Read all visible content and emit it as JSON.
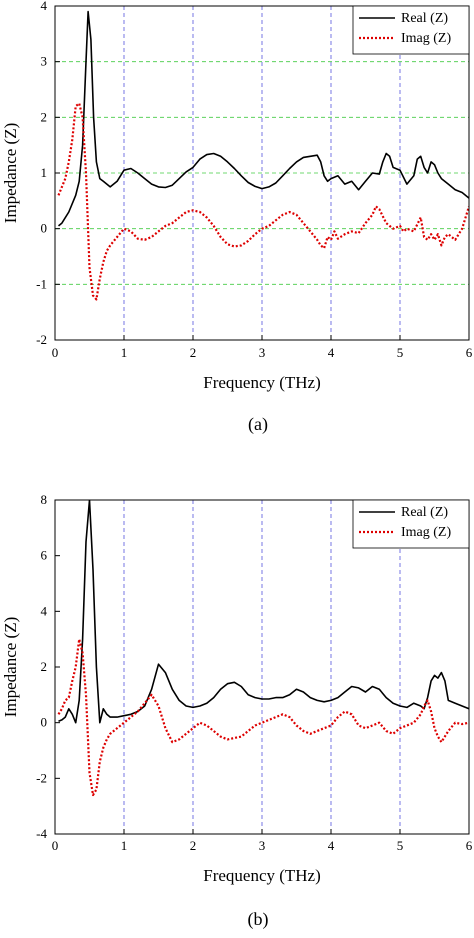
{
  "chart_data": [
    {
      "type": "line",
      "caption": "(a)",
      "xlabel": "Frequency (THz)",
      "ylabel": "Impedance (Z)",
      "xlim": [
        0,
        6
      ],
      "ylim": [
        -2,
        4
      ],
      "xticks": [
        0,
        1,
        2,
        3,
        4,
        5,
        6
      ],
      "yticks": [
        -2,
        -1,
        0,
        1,
        2,
        3,
        4
      ],
      "grid": {
        "x": "blue dashed vertical",
        "y": "green dashed horizontal"
      },
      "legend": "top-right",
      "series": [
        {
          "name": "Real (Z)",
          "color": "#000000",
          "style": "solid",
          "x": [
            0.05,
            0.1,
            0.2,
            0.3,
            0.35,
            0.4,
            0.45,
            0.48,
            0.52,
            0.56,
            0.6,
            0.65,
            0.7,
            0.8,
            0.9,
            1.0,
            1.1,
            1.2,
            1.3,
            1.4,
            1.5,
            1.6,
            1.7,
            1.8,
            1.9,
            2.0,
            2.1,
            2.2,
            2.3,
            2.4,
            2.5,
            2.6,
            2.7,
            2.8,
            2.9,
            3.0,
            3.1,
            3.2,
            3.3,
            3.4,
            3.5,
            3.6,
            3.7,
            3.8,
            3.85,
            3.9,
            3.95,
            4.0,
            4.1,
            4.2,
            4.3,
            4.4,
            4.5,
            4.6,
            4.7,
            4.75,
            4.8,
            4.85,
            4.9,
            5.0,
            5.1,
            5.2,
            5.25,
            5.3,
            5.35,
            5.4,
            5.45,
            5.5,
            5.55,
            5.6,
            5.7,
            5.8,
            5.9,
            6.0
          ],
          "values": [
            0.05,
            0.1,
            0.3,
            0.6,
            0.85,
            1.5,
            3.0,
            3.9,
            3.4,
            2.0,
            1.2,
            0.9,
            0.85,
            0.75,
            0.85,
            1.05,
            1.08,
            1.0,
            0.9,
            0.8,
            0.75,
            0.74,
            0.78,
            0.9,
            1.02,
            1.1,
            1.25,
            1.33,
            1.35,
            1.3,
            1.2,
            1.08,
            0.95,
            0.83,
            0.76,
            0.72,
            0.75,
            0.82,
            0.95,
            1.08,
            1.2,
            1.28,
            1.3,
            1.32,
            1.2,
            0.95,
            0.85,
            0.9,
            0.95,
            0.8,
            0.85,
            0.7,
            0.85,
            1.0,
            0.98,
            1.2,
            1.35,
            1.3,
            1.1,
            1.05,
            0.8,
            0.95,
            1.25,
            1.3,
            1.1,
            1.0,
            1.2,
            1.15,
            1.0,
            0.9,
            0.8,
            0.7,
            0.65,
            0.55
          ]
        },
        {
          "name": "Imag (Z)",
          "color": "#dd0000",
          "style": "dotted",
          "x": [
            0.05,
            0.1,
            0.15,
            0.2,
            0.25,
            0.3,
            0.35,
            0.4,
            0.45,
            0.5,
            0.55,
            0.6,
            0.65,
            0.7,
            0.75,
            0.8,
            0.9,
            1.0,
            1.1,
            1.2,
            1.3,
            1.4,
            1.5,
            1.6,
            1.7,
            1.8,
            1.9,
            2.0,
            2.1,
            2.2,
            2.3,
            2.4,
            2.5,
            2.6,
            2.7,
            2.8,
            2.9,
            3.0,
            3.1,
            3.2,
            3.3,
            3.4,
            3.5,
            3.6,
            3.7,
            3.8,
            3.85,
            3.9,
            3.95,
            4.0,
            4.05,
            4.1,
            4.2,
            4.3,
            4.4,
            4.5,
            4.6,
            4.65,
            4.7,
            4.8,
            4.9,
            5.0,
            5.05,
            5.1,
            5.2,
            5.3,
            5.35,
            5.4,
            5.45,
            5.5,
            5.55,
            5.6,
            5.65,
            5.7,
            5.8,
            5.9,
            6.0
          ],
          "values": [
            0.6,
            0.75,
            0.9,
            1.2,
            1.6,
            2.2,
            2.25,
            2.0,
            1.0,
            -0.7,
            -1.2,
            -1.27,
            -0.9,
            -0.6,
            -0.4,
            -0.3,
            -0.15,
            0.0,
            -0.05,
            -0.18,
            -0.2,
            -0.15,
            -0.05,
            0.05,
            0.1,
            0.2,
            0.3,
            0.33,
            0.3,
            0.2,
            0.05,
            -0.15,
            -0.28,
            -0.32,
            -0.3,
            -0.22,
            -0.1,
            0.0,
            0.05,
            0.15,
            0.25,
            0.3,
            0.25,
            0.1,
            -0.05,
            -0.2,
            -0.3,
            -0.35,
            -0.15,
            -0.2,
            -0.05,
            -0.18,
            -0.1,
            -0.05,
            -0.08,
            0.1,
            0.25,
            0.4,
            0.35,
            0.1,
            0.0,
            0.05,
            -0.05,
            0.0,
            -0.05,
            0.2,
            -0.15,
            -0.2,
            -0.1,
            -0.2,
            -0.1,
            -0.3,
            -0.15,
            -0.1,
            -0.2,
            0.0,
            0.4
          ]
        }
      ]
    },
    {
      "type": "line",
      "caption": "(b)",
      "xlabel": "Frequency (THz)",
      "ylabel": "Impedance (Z)",
      "xlim": [
        0,
        6
      ],
      "ylim": [
        -4,
        8
      ],
      "xticks": [
        0,
        1,
        2,
        3,
        4,
        5,
        6
      ],
      "yticks": [
        -4,
        -2,
        0,
        2,
        4,
        6,
        8
      ],
      "grid": {
        "x": "blue dashed vertical",
        "y": "none"
      },
      "legend": "top-right",
      "series": [
        {
          "name": "Real (Z)",
          "color": "#000000",
          "style": "solid",
          "x": [
            0.05,
            0.1,
            0.15,
            0.2,
            0.25,
            0.3,
            0.35,
            0.4,
            0.45,
            0.5,
            0.55,
            0.6,
            0.65,
            0.7,
            0.75,
            0.8,
            0.9,
            1.0,
            1.1,
            1.2,
            1.3,
            1.4,
            1.5,
            1.6,
            1.7,
            1.8,
            1.9,
            2.0,
            2.1,
            2.2,
            2.3,
            2.4,
            2.5,
            2.6,
            2.7,
            2.8,
            2.9,
            3.0,
            3.1,
            3.2,
            3.3,
            3.4,
            3.5,
            3.6,
            3.7,
            3.8,
            3.9,
            4.0,
            4.1,
            4.2,
            4.3,
            4.4,
            4.5,
            4.6,
            4.7,
            4.8,
            4.9,
            5.0,
            5.1,
            5.2,
            5.3,
            5.35,
            5.4,
            5.45,
            5.5,
            5.55,
            5.6,
            5.65,
            5.7,
            5.8,
            5.9,
            6.0
          ],
          "values": [
            0.05,
            0.1,
            0.2,
            0.5,
            0.3,
            0.0,
            0.8,
            3.0,
            6.5,
            8.0,
            5.5,
            2.0,
            0.0,
            0.5,
            0.3,
            0.2,
            0.2,
            0.25,
            0.3,
            0.4,
            0.6,
            1.2,
            2.1,
            1.8,
            1.2,
            0.8,
            0.6,
            0.55,
            0.6,
            0.7,
            0.9,
            1.2,
            1.4,
            1.45,
            1.3,
            1.0,
            0.9,
            0.85,
            0.85,
            0.9,
            0.9,
            1.0,
            1.2,
            1.1,
            0.9,
            0.8,
            0.75,
            0.8,
            0.9,
            1.1,
            1.3,
            1.25,
            1.1,
            1.3,
            1.2,
            0.9,
            0.7,
            0.6,
            0.55,
            0.7,
            0.6,
            0.5,
            0.9,
            1.5,
            1.7,
            1.6,
            1.8,
            1.5,
            0.8,
            0.7,
            0.6,
            0.5
          ]
        },
        {
          "name": "Imag (Z)",
          "color": "#dd0000",
          "style": "dotted",
          "x": [
            0.05,
            0.1,
            0.15,
            0.2,
            0.25,
            0.3,
            0.35,
            0.4,
            0.45,
            0.5,
            0.55,
            0.6,
            0.65,
            0.7,
            0.75,
            0.8,
            0.9,
            1.0,
            1.1,
            1.2,
            1.3,
            1.4,
            1.5,
            1.6,
            1.7,
            1.8,
            1.9,
            2.0,
            2.1,
            2.2,
            2.3,
            2.4,
            2.5,
            2.6,
            2.7,
            2.8,
            2.9,
            3.0,
            3.1,
            3.2,
            3.3,
            3.4,
            3.5,
            3.6,
            3.7,
            3.8,
            3.9,
            4.0,
            4.1,
            4.2,
            4.3,
            4.4,
            4.5,
            4.6,
            4.7,
            4.8,
            4.9,
            5.0,
            5.1,
            5.2,
            5.3,
            5.35,
            5.4,
            5.45,
            5.5,
            5.55,
            5.6,
            5.7,
            5.8,
            5.9,
            6.0
          ],
          "values": [
            0.3,
            0.5,
            0.8,
            0.9,
            1.5,
            2.0,
            3.0,
            2.5,
            1.0,
            -1.8,
            -2.6,
            -2.4,
            -1.4,
            -0.9,
            -0.6,
            -0.4,
            -0.2,
            0.0,
            0.2,
            0.4,
            0.7,
            1.0,
            0.6,
            -0.2,
            -0.7,
            -0.6,
            -0.4,
            -0.2,
            0.0,
            -0.1,
            -0.3,
            -0.5,
            -0.6,
            -0.55,
            -0.5,
            -0.3,
            -0.1,
            0.0,
            0.1,
            0.2,
            0.3,
            0.2,
            -0.1,
            -0.3,
            -0.4,
            -0.3,
            -0.2,
            -0.1,
            0.2,
            0.4,
            0.3,
            -0.1,
            -0.2,
            -0.1,
            0.0,
            -0.3,
            -0.4,
            -0.2,
            -0.1,
            0.0,
            0.3,
            0.6,
            0.8,
            0.4,
            -0.2,
            -0.5,
            -0.7,
            -0.3,
            0.0,
            -0.05,
            0.0
          ]
        }
      ]
    }
  ]
}
